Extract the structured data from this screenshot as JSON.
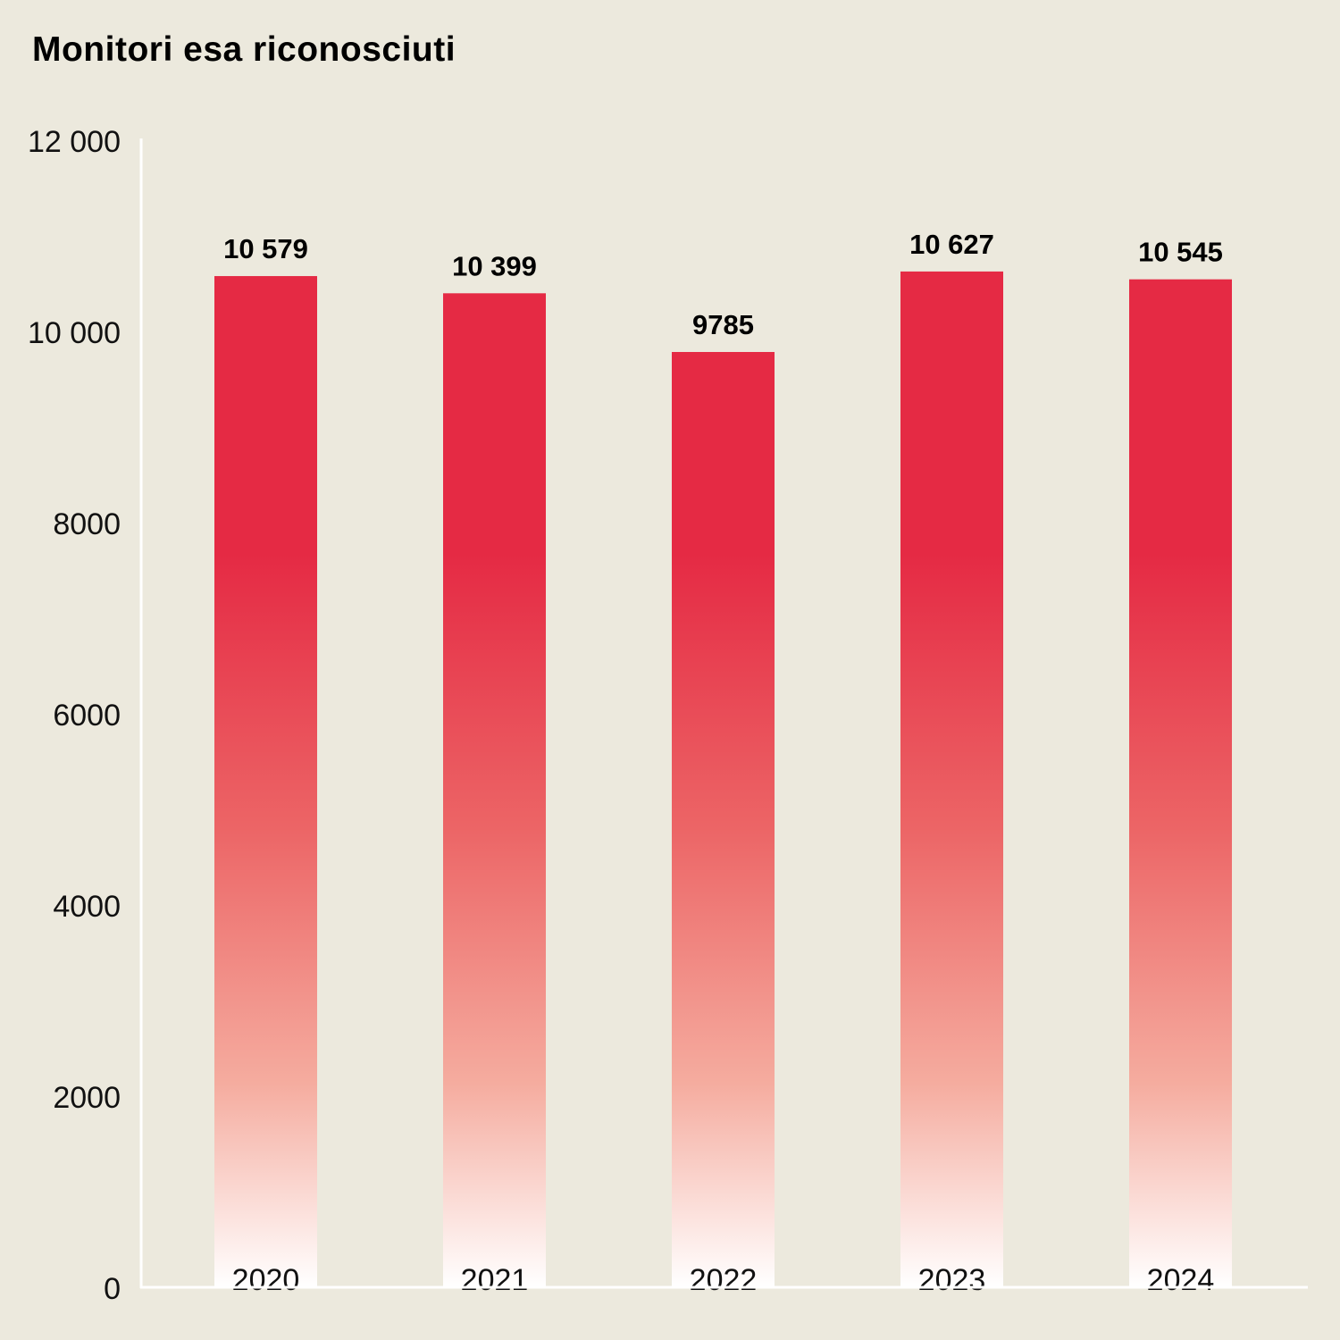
{
  "chart_data": {
    "type": "bar",
    "title": "Monitori esa riconosciuti",
    "xlabel": "",
    "ylabel": "",
    "categories": [
      "2020",
      "2021",
      "2022",
      "2023",
      "2024"
    ],
    "values": [
      10579,
      10399,
      9785,
      10627,
      10545
    ],
    "value_labels": [
      "10 579",
      "10 399",
      "9785",
      "10 627",
      "10 545"
    ],
    "ylim": [
      0,
      12000
    ],
    "yticks": [
      0,
      2000,
      4000,
      6000,
      8000,
      10000,
      12000
    ],
    "ytick_labels": [
      "0",
      "2000",
      "4000",
      "6000",
      "8000",
      "10 000",
      "12 000"
    ],
    "grid": false,
    "colors": {
      "background": "#ECE9DD",
      "bar_top": "#E52A44",
      "bar_bottom": "#FFFFFF",
      "axis": "#FFFFFF"
    }
  }
}
